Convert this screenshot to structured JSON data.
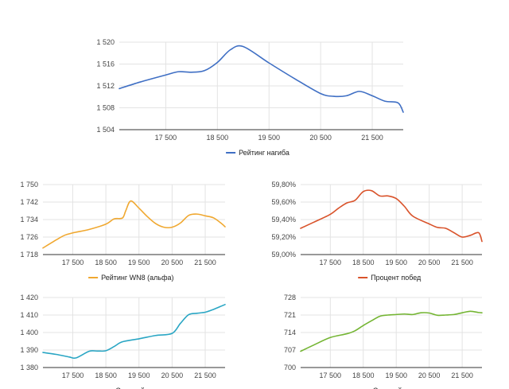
{
  "chart_data": [
    {
      "id": "rating",
      "type": "line",
      "color": "#3f6fc4",
      "series": [
        {
          "name": "Рейтинг нагиба"
        }
      ],
      "yticks": [
        "1 504",
        "1 508",
        "1 512",
        "1 516",
        "1 520"
      ],
      "ylim": [
        1504,
        1520
      ],
      "xticks": [
        "17 500",
        "18 500",
        "19 500",
        "20 500",
        "21 500"
      ],
      "x": [
        16600,
        17000,
        17500,
        17750,
        18000,
        18250,
        18500,
        18750,
        19000,
        19500,
        20000,
        20500,
        20750,
        21000,
        21250,
        21500,
        21750,
        22000,
        22100
      ],
      "y": [
        1511.5,
        1512.7,
        1514.0,
        1514.6,
        1514.5,
        1514.8,
        1516.3,
        1518.6,
        1519.2,
        1516.2,
        1513.3,
        1510.6,
        1510.1,
        1510.2,
        1511.0,
        1510.2,
        1509.2,
        1508.9,
        1507.2
      ],
      "xlim": [
        16600,
        22100
      ],
      "grid": true,
      "legend": "bottom"
    },
    {
      "id": "wn8",
      "type": "line",
      "color": "#f0a830",
      "series": [
        {
          "name": "Рейтинг WN8 (альфа)"
        }
      ],
      "yticks": [
        "1 718",
        "1 726",
        "1 734",
        "1 742",
        "1 750"
      ],
      "ylim": [
        1718,
        1750
      ],
      "xticks": [
        "17 500",
        "18 500",
        "19 500",
        "20 500",
        "21 500"
      ],
      "x": [
        16600,
        17000,
        17250,
        17500,
        18000,
        18500,
        18750,
        19000,
        19100,
        19250,
        19500,
        19750,
        20000,
        20250,
        20500,
        20750,
        21000,
        21250,
        21500,
        21750,
        22000,
        22100
      ],
      "y": [
        1721.0,
        1724.7,
        1726.8,
        1727.9,
        1729.5,
        1731.9,
        1734.3,
        1734.7,
        1738.0,
        1742.5,
        1739.2,
        1735.4,
        1732.2,
        1730.5,
        1730.5,
        1732.4,
        1735.9,
        1736.5,
        1735.7,
        1734.8,
        1732.1,
        1730.7
      ],
      "xlim": [
        16600,
        22100
      ],
      "grid": true,
      "legend": "bottom"
    },
    {
      "id": "winrate",
      "type": "line",
      "color": "#d9532b",
      "series": [
        {
          "name": "Процент побед"
        }
      ],
      "yticks": [
        "59,00%",
        "59,20%",
        "59,40%",
        "59,60%",
        "59,80%"
      ],
      "ylim": [
        59.0,
        59.8
      ],
      "xticks": [
        "17 500",
        "18 500",
        "19 500",
        "20 500",
        "21 500"
      ],
      "x": [
        16600,
        17000,
        17500,
        17750,
        18000,
        18250,
        18500,
        18750,
        19000,
        19250,
        19500,
        19750,
        20000,
        20500,
        20750,
        21000,
        21250,
        21500,
        21750,
        22000,
        22100
      ],
      "y": [
        59.3,
        59.37,
        59.46,
        59.53,
        59.59,
        59.62,
        59.72,
        59.73,
        59.67,
        59.67,
        59.64,
        59.55,
        59.44,
        59.35,
        59.31,
        59.3,
        59.25,
        59.2,
        59.22,
        59.25,
        59.15
      ],
      "xlim": [
        16600,
        22100
      ],
      "grid": true,
      "legend": "bottom"
    },
    {
      "id": "damage",
      "type": "line",
      "color": "#2aa6c4",
      "series": [
        {
          "name": "Средний урон"
        }
      ],
      "yticks": [
        "1 380",
        "1 390",
        "1 400",
        "1 410",
        "1 420"
      ],
      "ylim": [
        1380,
        1420
      ],
      "xticks": [
        "17 500",
        "18 500",
        "19 500",
        "20 500",
        "21 500"
      ],
      "x": [
        16600,
        17000,
        17400,
        17600,
        18000,
        18250,
        18500,
        18750,
        19000,
        19500,
        20000,
        20500,
        20750,
        21000,
        21250,
        21500,
        21750,
        22000,
        22100
      ],
      "y": [
        1388.6,
        1387.5,
        1386.0,
        1385.5,
        1389.3,
        1389.4,
        1389.6,
        1392.0,
        1394.7,
        1396.4,
        1398.3,
        1399.5,
        1405.2,
        1410.2,
        1411.0,
        1411.6,
        1413.2,
        1415.2,
        1416.0
      ],
      "xlim": [
        16600,
        22100
      ],
      "grid": true,
      "legend": "bottom"
    },
    {
      "id": "xp",
      "type": "line",
      "color": "#74b533",
      "series": [
        {
          "name": "Средний опыт"
        }
      ],
      "yticks": [
        "700",
        "707",
        "714",
        "721",
        "728"
      ],
      "ylim": [
        700,
        728
      ],
      "xticks": [
        "17 500",
        "18 500",
        "19 500",
        "20 500",
        "21 500"
      ],
      "x": [
        16600,
        17000,
        17500,
        18000,
        18250,
        18500,
        18750,
        19000,
        19250,
        19500,
        19750,
        20000,
        20250,
        20500,
        20750,
        21000,
        21250,
        21500,
        21750,
        22000,
        22100
      ],
      "y": [
        706.5,
        709.0,
        712.0,
        713.5,
        714.7,
        716.8,
        718.7,
        720.5,
        721.0,
        721.2,
        721.4,
        721.2,
        721.9,
        721.8,
        720.9,
        721.0,
        721.2,
        721.9,
        722.5,
        722.0,
        721.9
      ],
      "xlim": [
        16600,
        22100
      ],
      "grid": true,
      "legend": "bottom"
    }
  ]
}
